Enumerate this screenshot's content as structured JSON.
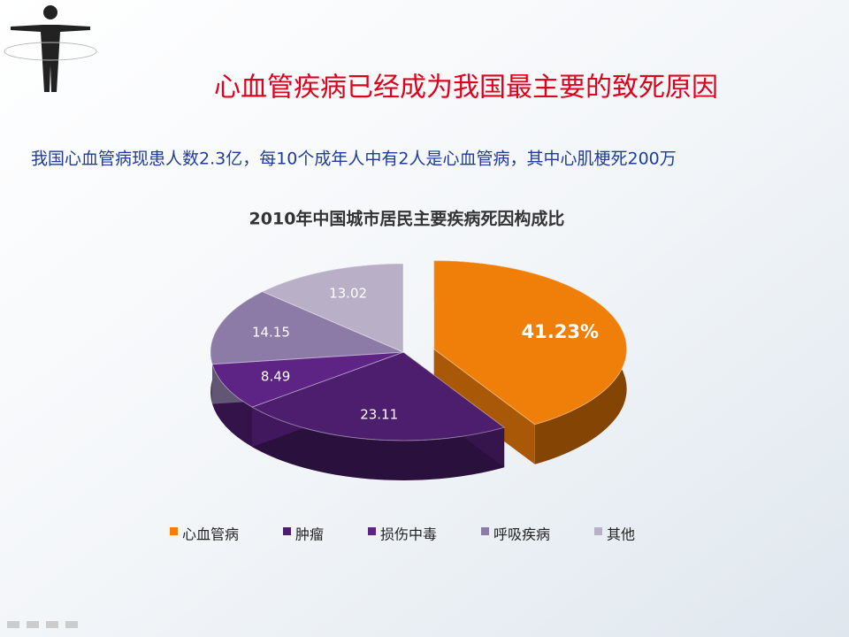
{
  "slide": {
    "title": "心血管疾病已经成为我国最主要的致死原因",
    "subtitle": "我国心血管病现患人数2.3亿，每10个成年人中有2人是心血管病，其中心肌梗死200万"
  },
  "chart_data": {
    "type": "pie",
    "title": "2010年中国城市居民主要疾病死因构成比",
    "categories": [
      "心血管病",
      "肿瘤",
      "损伤中毒",
      "呼吸疾病",
      "其他"
    ],
    "values": [
      41.23,
      23.11,
      8.49,
      14.15,
      13.02
    ],
    "value_labels": [
      "41.23%",
      "23.11",
      "8.49",
      "14.15",
      "13.02"
    ],
    "colors": [
      "#f07f09",
      "#4e1e6e",
      "#5d2385",
      "#8c7ba6",
      "#b9b0c8"
    ],
    "legend": "bottom"
  }
}
